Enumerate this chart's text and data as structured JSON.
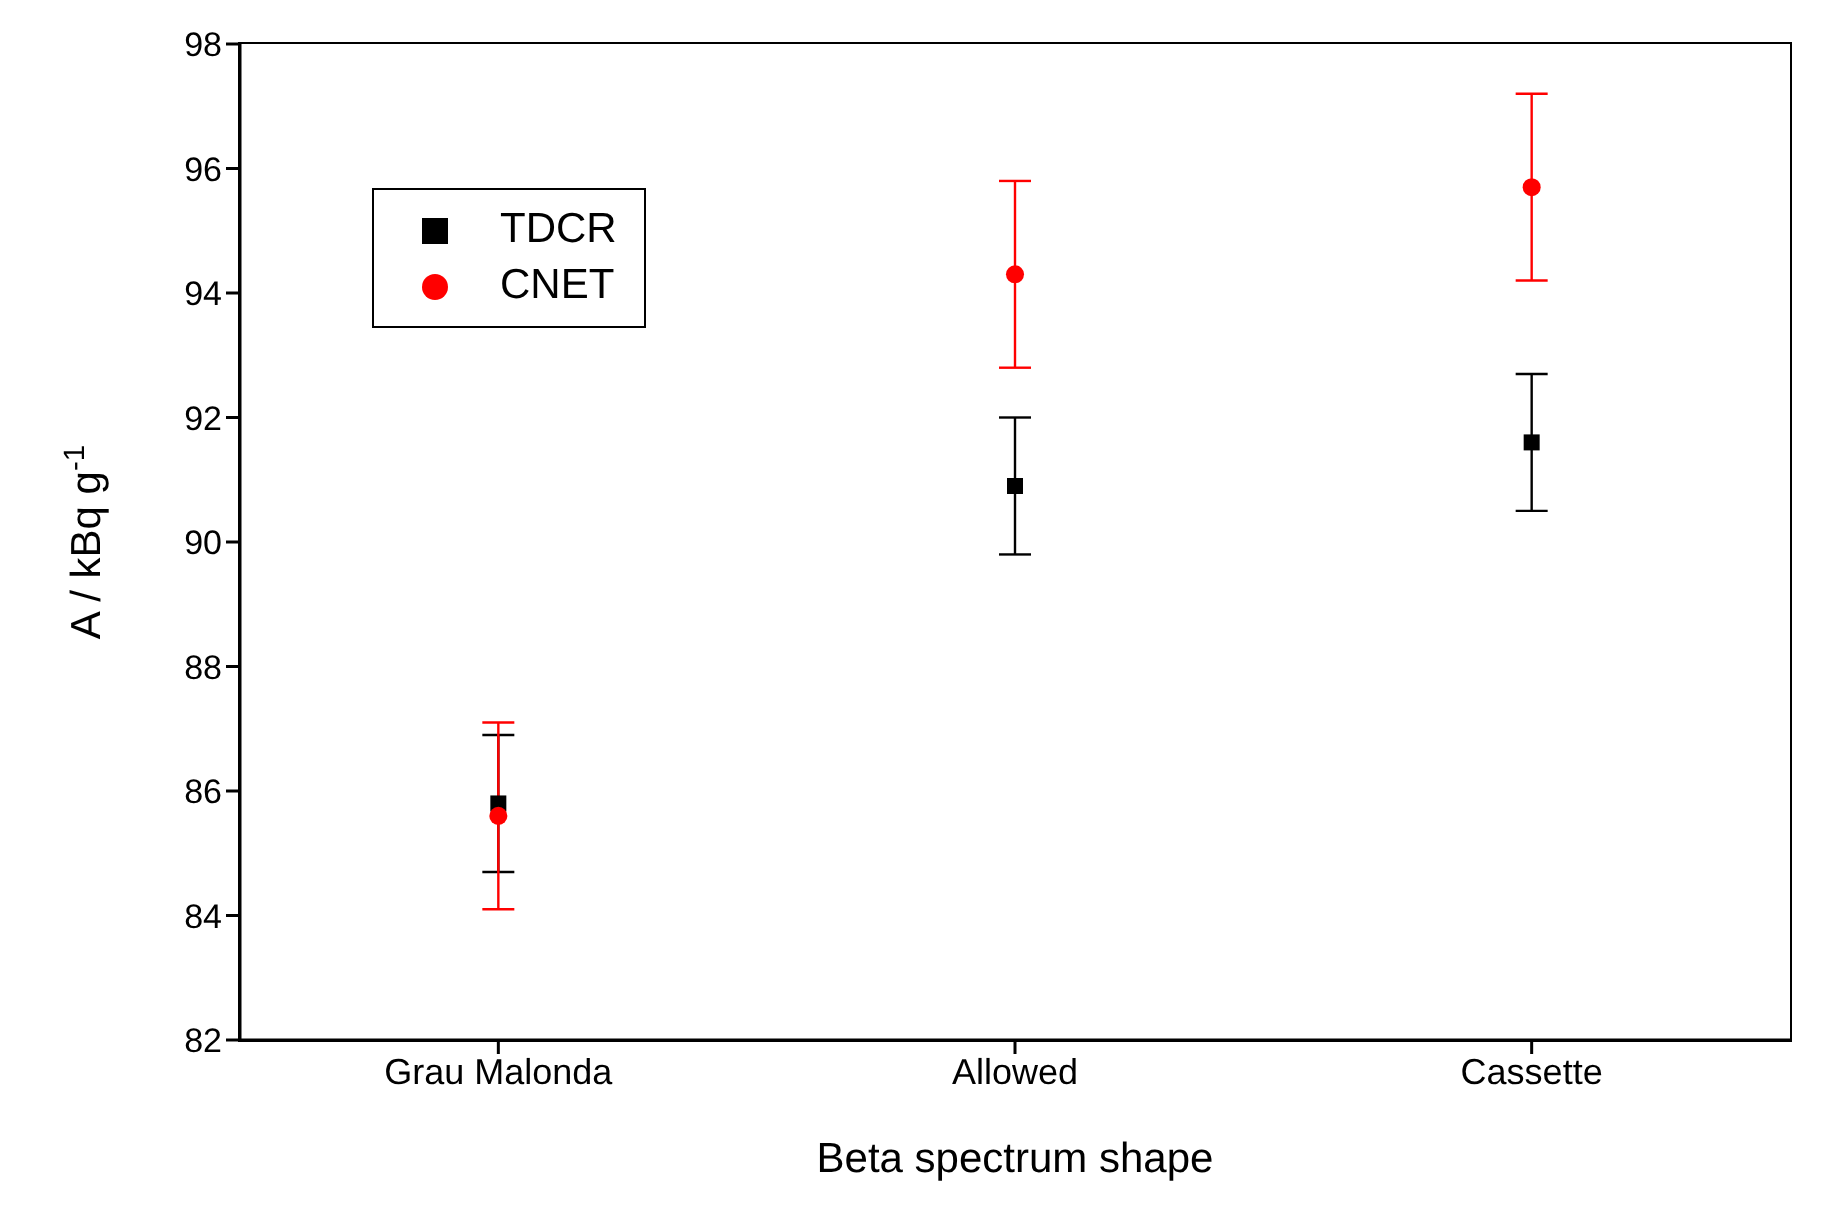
{
  "chart_data": {
    "type": "scatter",
    "xlabel": "Beta spectrum shape",
    "ylabel": "A / kBq g$^{-1}$",
    "categories": [
      "Grau Malonda",
      "Allowed",
      "Cassette"
    ],
    "series": [
      {
        "name": "TDCR",
        "color": "#000000",
        "marker": "square",
        "values": [
          85.8,
          90.9,
          91.6
        ],
        "errors": [
          1.1,
          1.1,
          1.1
        ]
      },
      {
        "name": "CNET",
        "color": "#ff0000",
        "marker": "circle",
        "values": [
          85.6,
          94.3,
          95.7
        ],
        "errors": [
          1.5,
          1.5,
          1.5
        ]
      }
    ],
    "ylim": [
      82,
      98
    ],
    "yticks": [
      82,
      84,
      86,
      88,
      90,
      92,
      94,
      96,
      98
    ],
    "legend": "top left"
  }
}
